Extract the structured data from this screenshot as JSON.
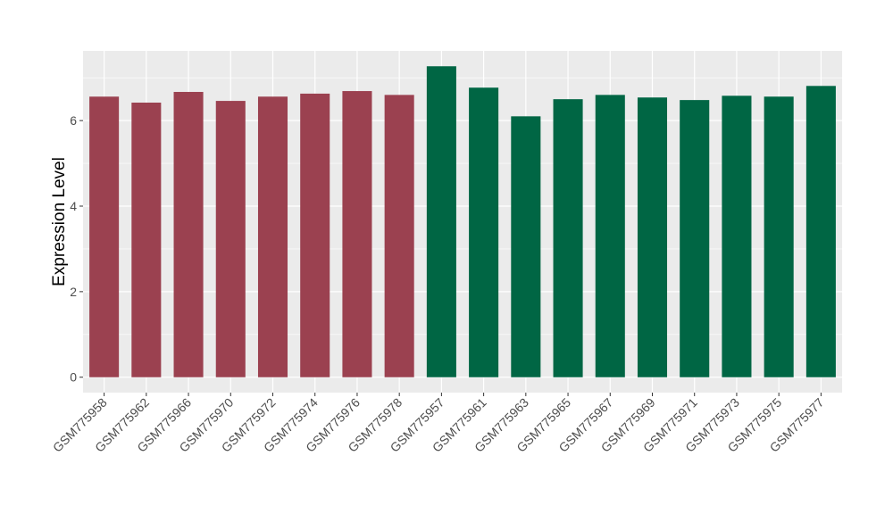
{
  "chart_data": {
    "type": "bar",
    "title": "",
    "xlabel": "",
    "ylabel": "Expression Level",
    "ylim": [
      -0.36,
      7.63
    ],
    "yticks": [
      0,
      2,
      4,
      6
    ],
    "grid": true,
    "categories": [
      "GSM775958",
      "GSM775962",
      "GSM775966",
      "GSM775970",
      "GSM775972",
      "GSM775974",
      "GSM775976",
      "GSM775978",
      "GSM775957",
      "GSM775961",
      "GSM775963",
      "GSM775965",
      "GSM775967",
      "GSM775969",
      "GSM775971",
      "GSM775973",
      "GSM775975",
      "GSM775977"
    ],
    "values": [
      6.56,
      6.42,
      6.67,
      6.46,
      6.56,
      6.63,
      6.69,
      6.6,
      7.27,
      6.77,
      6.1,
      6.5,
      6.6,
      6.54,
      6.48,
      6.58,
      6.56,
      6.81
    ],
    "groups": [
      0,
      0,
      0,
      0,
      0,
      0,
      0,
      0,
      1,
      1,
      1,
      1,
      1,
      1,
      1,
      1,
      1,
      1
    ],
    "group_colors": [
      "#9b4150",
      "#006644"
    ],
    "panel_background": "#ebebeb"
  }
}
